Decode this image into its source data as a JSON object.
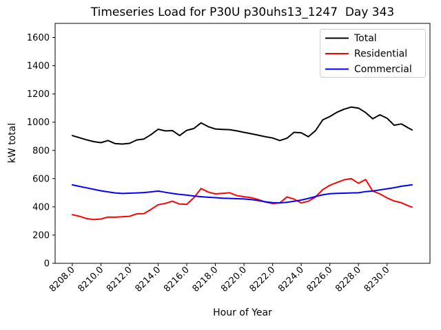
{
  "chart_data": {
    "type": "line",
    "title": "Timeseries Load for P30U p30uhs13_1247  Day 343",
    "xlabel": "Hour of Year",
    "ylabel": "kW total",
    "xlim": [
      8206.8,
      8233.0
    ],
    "ylim": [
      0,
      1700
    ],
    "grid": false,
    "x_tick_rotation_deg": 45,
    "xtick_values": [
      8208,
      8210,
      8212,
      8214,
      8216,
      8218,
      8220,
      8222,
      8224,
      8226,
      8228,
      8230
    ],
    "xtick_labels": [
      "8208.0",
      "8210.0",
      "8212.0",
      "8214.0",
      "8216.0",
      "8218.0",
      "8220.0",
      "8222.0",
      "8224.0",
      "8226.0",
      "8228.0",
      "8230.0"
    ],
    "ytick_values": [
      0,
      200,
      400,
      600,
      800,
      1000,
      1200,
      1400,
      1600
    ],
    "ytick_labels": [
      "0",
      "200",
      "400",
      "600",
      "800",
      "1000",
      "1200",
      "1400",
      "1600"
    ],
    "legend": {
      "position": "upper right"
    },
    "x": [
      8208.0,
      8208.5,
      8209.0,
      8209.5,
      8210.0,
      8210.5,
      8211.0,
      8211.5,
      8212.0,
      8212.5,
      8213.0,
      8213.5,
      8214.0,
      8214.5,
      8215.0,
      8215.5,
      8216.0,
      8216.5,
      8217.0,
      8217.5,
      8218.0,
      8218.5,
      8219.0,
      8219.5,
      8220.0,
      8220.5,
      8221.0,
      8221.5,
      8222.0,
      8222.5,
      8223.0,
      8223.5,
      8224.0,
      8224.5,
      8225.0,
      8225.5,
      8226.0,
      8226.5,
      8227.0,
      8227.5,
      8228.0,
      8228.5,
      8229.0,
      8229.5,
      8230.0,
      8230.5,
      8231.0,
      8231.5,
      8231.75
    ],
    "series": [
      {
        "name": "Total",
        "color": "#000000",
        "values": [
          905,
          890,
          875,
          862,
          855,
          870,
          848,
          845,
          850,
          874,
          880,
          912,
          950,
          938,
          940,
          905,
          942,
          955,
          995,
          968,
          952,
          949,
          947,
          938,
          928,
          918,
          908,
          897,
          888,
          870,
          886,
          928,
          925,
          897,
          940,
          1016,
          1040,
          1070,
          1092,
          1107,
          1100,
          1068,
          1024,
          1052,
          1028,
          978,
          988,
          958,
          945
        ]
      },
      {
        "name": "Residential",
        "color": "#ff0000",
        "values": [
          345,
          333,
          317,
          310,
          314,
          328,
          327,
          330,
          333,
          350,
          352,
          382,
          415,
          425,
          440,
          420,
          418,
          465,
          530,
          505,
          492,
          496,
          500,
          480,
          472,
          465,
          452,
          434,
          424,
          428,
          470,
          455,
          428,
          440,
          470,
          522,
          553,
          573,
          592,
          600,
          567,
          594,
          512,
          492,
          463,
          442,
          429,
          407,
          398
        ]
      },
      {
        "name": "Commercial",
        "color": "#0000ff",
        "values": [
          556,
          545,
          535,
          524,
          514,
          506,
          499,
          495,
          497,
          499,
          501,
          506,
          512,
          503,
          495,
          488,
          483,
          477,
          472,
          468,
          465,
          462,
          460,
          458,
          456,
          452,
          444,
          436,
          430,
          428,
          432,
          440,
          448,
          460,
          473,
          485,
          493,
          496,
          497,
          499,
          500,
          508,
          512,
          520,
          528,
          536,
          546,
          553,
          556
        ]
      }
    ]
  }
}
